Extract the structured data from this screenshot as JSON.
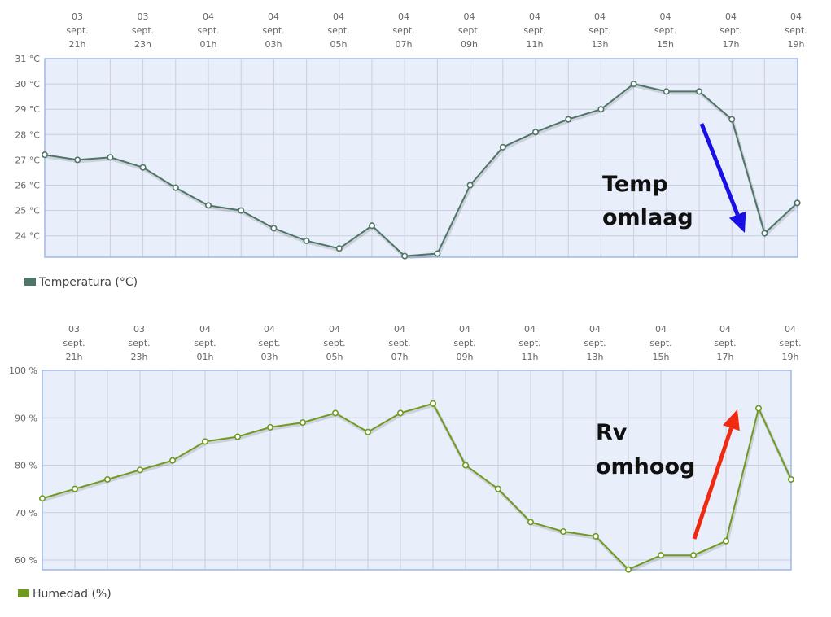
{
  "chart_data": [
    {
      "type": "line",
      "x_labels": [
        [
          "03",
          "sept.",
          "21h"
        ],
        [
          "03",
          "sept.",
          "23h"
        ],
        [
          "04",
          "sept.",
          "01h"
        ],
        [
          "04",
          "sept.",
          "03h"
        ],
        [
          "04",
          "sept.",
          "05h"
        ],
        [
          "04",
          "sept.",
          "07h"
        ],
        [
          "04",
          "sept.",
          "09h"
        ],
        [
          "04",
          "sept.",
          "11h"
        ],
        [
          "04",
          "sept.",
          "13h"
        ],
        [
          "04",
          "sept.",
          "15h"
        ],
        [
          "04",
          "sept.",
          "17h"
        ],
        [
          "04",
          "sept.",
          "19h"
        ]
      ],
      "series": [
        {
          "name": "Temperatura (°C)",
          "color": "#4e7566",
          "values": [
            27.2,
            27.0,
            27.1,
            26.7,
            25.9,
            25.2,
            25.0,
            24.3,
            23.8,
            23.5,
            24.4,
            23.2,
            23.3,
            26.0,
            27.5,
            28.1,
            28.6,
            29.0,
            30.0,
            29.7,
            29.7,
            28.6,
            24.1,
            25.3
          ]
        }
      ],
      "y_ticks": [
        "24 °C",
        "25 °C",
        "26 °C",
        "27 °C",
        "28 °C",
        "29 °C",
        "30 °C",
        "31 °C"
      ],
      "ylim": [
        23.2,
        31
      ],
      "grid": true,
      "legend": "bottom-left",
      "annotation": {
        "lines": [
          "Temp",
          "omlaag"
        ],
        "arrow_color": "#1a10e6"
      }
    },
    {
      "type": "line",
      "x_labels": [
        [
          "03",
          "sept.",
          "21h"
        ],
        [
          "03",
          "sept.",
          "23h"
        ],
        [
          "04",
          "sept.",
          "01h"
        ],
        [
          "04",
          "sept.",
          "03h"
        ],
        [
          "04",
          "sept.",
          "05h"
        ],
        [
          "04",
          "sept.",
          "07h"
        ],
        [
          "04",
          "sept.",
          "09h"
        ],
        [
          "04",
          "sept.",
          "11h"
        ],
        [
          "04",
          "sept.",
          "13h"
        ],
        [
          "04",
          "sept.",
          "15h"
        ],
        [
          "04",
          "sept.",
          "17h"
        ],
        [
          "04",
          "sept.",
          "19h"
        ]
      ],
      "series": [
        {
          "name": "Humedad (%)",
          "color": "#6e9a1e",
          "values": [
            73,
            75,
            77,
            79,
            81,
            85,
            86,
            88,
            89,
            91,
            87,
            91,
            93,
            80,
            75,
            68,
            66,
            65,
            58,
            61,
            61,
            64,
            92,
            77
          ]
        }
      ],
      "y_ticks": [
        "60 %",
        "70 %",
        "80 %",
        "90 %",
        "100 %"
      ],
      "ylim": [
        58,
        100
      ],
      "grid": true,
      "legend": "bottom-left",
      "annotation": {
        "lines": [
          "Rv",
          "omhoog"
        ],
        "arrow_color": "#f02a10"
      }
    }
  ]
}
